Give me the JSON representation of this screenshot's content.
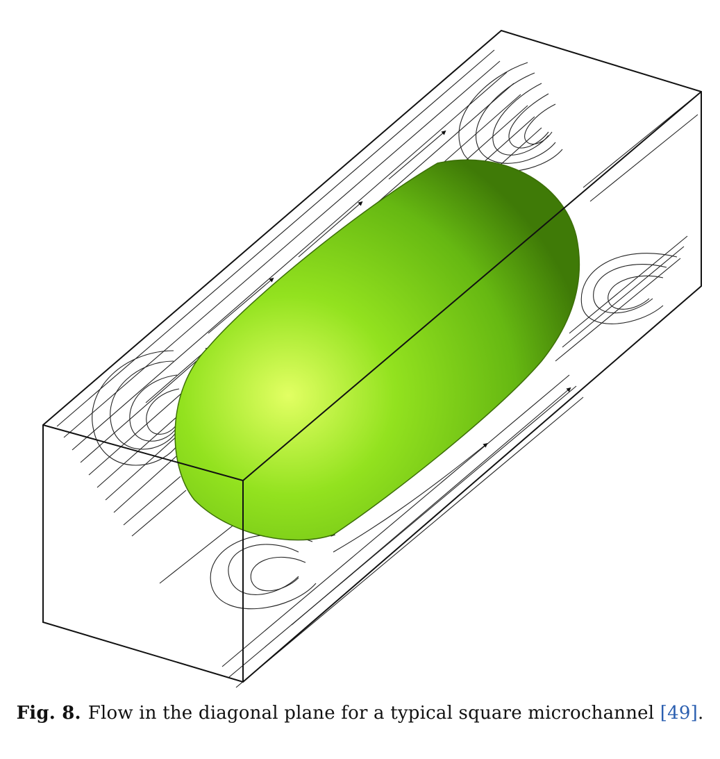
{
  "figure": {
    "label": "Fig. 8.",
    "caption_text": "Flow in the diagonal plane for a typical square microchannel",
    "reference": "[49]",
    "caption_end": ".",
    "reference_color": "#2b5fb0",
    "bubble_color": "#7fd21a",
    "bubble_highlight": "#d8ff5a",
    "bubble_shadow": "#3f7a07",
    "line_color": "#111111"
  }
}
